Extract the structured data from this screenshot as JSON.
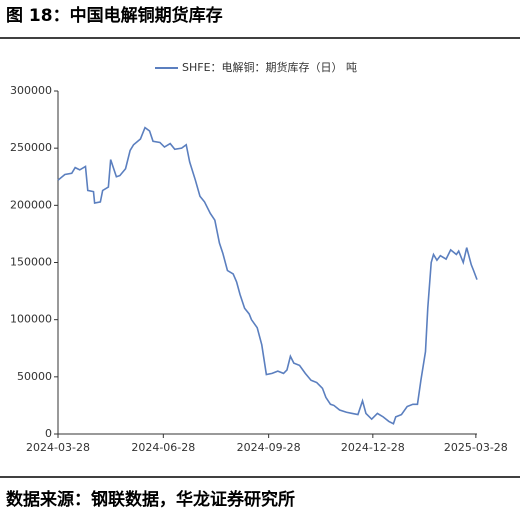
{
  "header": {
    "title": "图 18：中国电解铜期货库存"
  },
  "chart_data": {
    "type": "line",
    "x": [
      "2024-03-28",
      "2024-04-03",
      "2024-04-09",
      "2024-04-12",
      "2024-04-16",
      "2024-04-21",
      "2024-04-23",
      "2024-04-28",
      "2024-04-29",
      "2024-05-04",
      "2024-05-06",
      "2024-05-11",
      "2024-05-13",
      "2024-05-18",
      "2024-05-21",
      "2024-05-26",
      "2024-05-30",
      "2024-06-02",
      "2024-06-08",
      "2024-06-12",
      "2024-06-16",
      "2024-06-19",
      "2024-06-25",
      "2024-06-29",
      "2024-07-04",
      "2024-07-08",
      "2024-07-14",
      "2024-07-18",
      "2024-07-21",
      "2024-07-26",
      "2024-07-30",
      "2024-08-03",
      "2024-08-08",
      "2024-08-12",
      "2024-08-16",
      "2024-08-19",
      "2024-08-23",
      "2024-08-28",
      "2024-08-31",
      "2024-09-03",
      "2024-09-07",
      "2024-09-11",
      "2024-09-13",
      "2024-09-18",
      "2024-09-22",
      "2024-09-26",
      "2024-10-01",
      "2024-10-06",
      "2024-10-11",
      "2024-10-14",
      "2024-10-17",
      "2024-10-20",
      "2024-10-25",
      "2024-10-30",
      "2024-11-04",
      "2024-11-09",
      "2024-11-14",
      "2024-11-17",
      "2024-11-21",
      "2024-11-24",
      "2024-11-29",
      "2024-12-05",
      "2024-12-10",
      "2024-12-15",
      "2024-12-19",
      "2024-12-22",
      "2024-12-27",
      "2025-01-01",
      "2025-01-06",
      "2025-01-11",
      "2025-01-15",
      "2025-01-17",
      "2025-01-22",
      "2025-01-27",
      "2025-02-01",
      "2025-02-05",
      "2025-02-08",
      "2025-02-12",
      "2025-02-14",
      "2025-02-17",
      "2025-02-19",
      "2025-02-22",
      "2025-02-25",
      "2025-03-02",
      "2025-03-06",
      "2025-03-11",
      "2025-03-13",
      "2025-03-17",
      "2025-03-20",
      "2025-03-24",
      "2025-03-26",
      "2025-03-29"
    ],
    "series": [
      {
        "name": "SHFE：电解铜：期货库存（日） 吨",
        "color": "#5b7fbf",
        "values": [
          222000,
          227000,
          228000,
          233000,
          231000,
          234000,
          213000,
          212000,
          202000,
          203000,
          213000,
          216000,
          240000,
          225000,
          226000,
          232000,
          248000,
          253000,
          258000,
          268000,
          265000,
          256000,
          255000,
          251000,
          254000,
          249000,
          250000,
          253000,
          238000,
          222000,
          208000,
          203000,
          193000,
          187000,
          167000,
          158000,
          143000,
          140000,
          133000,
          122000,
          110000,
          105000,
          100000,
          93000,
          78000,
          52000,
          53000,
          55000,
          53000,
          56000,
          68000,
          62000,
          60000,
          53000,
          47000,
          45000,
          40000,
          32000,
          26000,
          25000,
          21000,
          19000,
          18000,
          17000,
          29000,
          18000,
          13000,
          18000,
          15000,
          11000,
          9000,
          15000,
          17000,
          24000,
          26000,
          26000,
          47000,
          72000,
          110000,
          150000,
          157000,
          152000,
          156000,
          153000,
          161000,
          157000,
          160000,
          150000,
          163000,
          148000,
          143000,
          135000
        ]
      }
    ],
    "xlim": [
      "2024-03-28",
      "2025-03-29"
    ],
    "xticks": [
      "2024-03-28",
      "2024-06-28",
      "2024-09-28",
      "2024-12-28",
      "2025-03-28"
    ],
    "ylim": [
      0,
      300000
    ],
    "yticks": [
      0,
      50000,
      100000,
      150000,
      200000,
      250000,
      300000
    ],
    "grid": false
  },
  "footer": {
    "source": "数据来源：钢联数据，华龙证券研究所"
  }
}
